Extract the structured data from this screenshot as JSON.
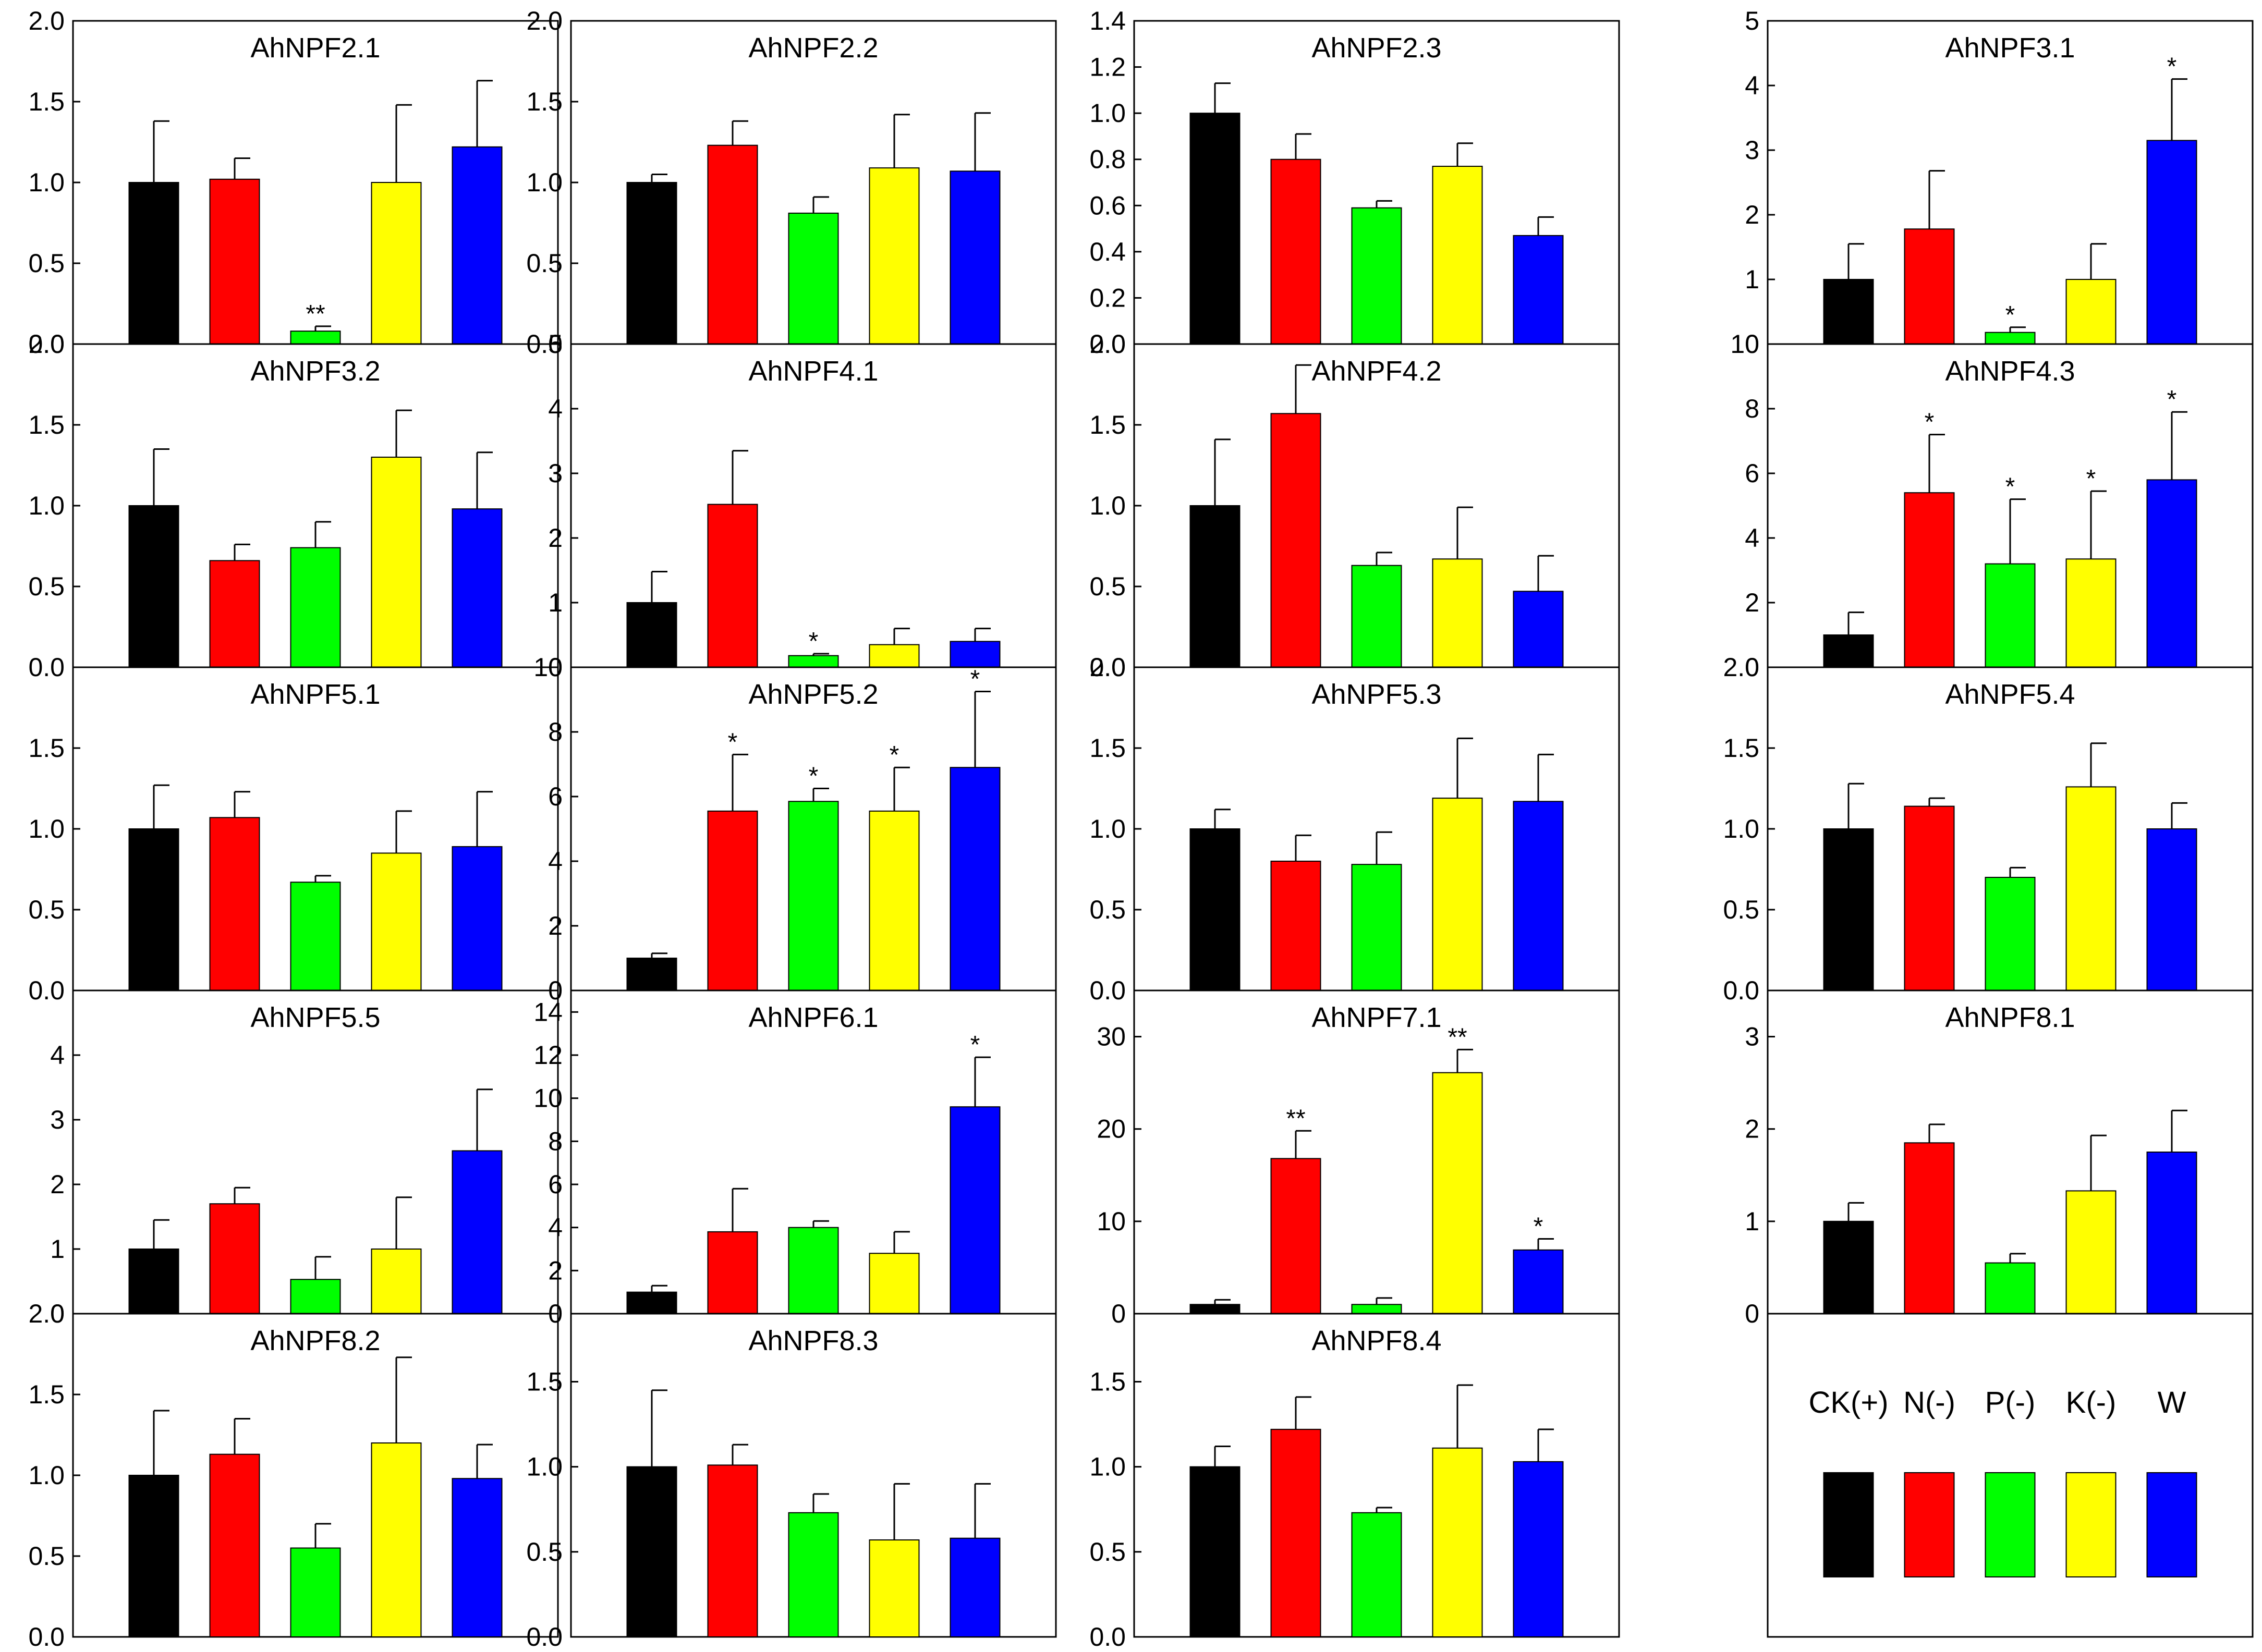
{
  "figure": {
    "legend": {
      "items": [
        {
          "label": "CK(+)",
          "color": "#000000"
        },
        {
          "label": "N(-)",
          "color": "#ff0000"
        },
        {
          "label": "P(-)",
          "color": "#00ff00"
        },
        {
          "label": "K(-)",
          "color": "#ffff00"
        },
        {
          "label": "W",
          "color": "#0000ff"
        }
      ]
    }
  },
  "chart_data": [
    {
      "type": "bar",
      "title": "AhNPF2.1",
      "categories": [
        "CK(+)",
        "N(-)",
        "P(-)",
        "K(-)",
        "W"
      ],
      "values": [
        1.0,
        1.02,
        0.08,
        1.0,
        1.22
      ],
      "errors": [
        0.38,
        0.13,
        0.03,
        0.48,
        0.41
      ],
      "significance": [
        "",
        "",
        "**",
        "",
        ""
      ],
      "ylim": [
        0,
        2.0
      ],
      "yticks": [
        "0.0",
        "0.5",
        "1.0",
        "1.5",
        "2.0"
      ]
    },
    {
      "type": "bar",
      "title": "AhNPF2.2",
      "categories": [
        "CK(+)",
        "N(-)",
        "P(-)",
        "K(-)",
        "W"
      ],
      "values": [
        1.0,
        1.23,
        0.81,
        1.09,
        1.07
      ],
      "errors": [
        0.05,
        0.15,
        0.1,
        0.33,
        0.36
      ],
      "significance": [
        "",
        "",
        "",
        "",
        ""
      ],
      "ylim": [
        0,
        2.0
      ],
      "yticks": [
        "0.0",
        "0.5",
        "1.0",
        "1.5",
        "2.0"
      ]
    },
    {
      "type": "bar",
      "title": "AhNPF2.3",
      "categories": [
        "CK(+)",
        "N(-)",
        "P(-)",
        "K(-)",
        "W"
      ],
      "values": [
        1.0,
        0.8,
        0.59,
        0.77,
        0.47
      ],
      "errors": [
        0.13,
        0.11,
        0.03,
        0.1,
        0.08
      ],
      "significance": [
        "",
        "",
        "",
        "",
        ""
      ],
      "ylim": [
        0,
        1.4
      ],
      "yticks": [
        "0.0",
        "0.2",
        "0.4",
        "0.6",
        "0.8",
        "1.0",
        "1.2",
        "1.4"
      ]
    },
    {
      "type": "bar",
      "title": "AhNPF3.1",
      "categories": [
        "CK(+)",
        "N(-)",
        "P(-)",
        "K(-)",
        "W"
      ],
      "values": [
        1.0,
        1.78,
        0.18,
        1.0,
        3.15
      ],
      "errors": [
        0.55,
        0.9,
        0.08,
        0.55,
        0.95
      ],
      "significance": [
        "",
        "",
        "*",
        "",
        "*"
      ],
      "ylim": [
        0,
        5
      ],
      "yticks": [
        "0",
        "1",
        "2",
        "3",
        "4",
        "5"
      ]
    },
    {
      "type": "bar",
      "title": "AhNPF3.2",
      "categories": [
        "CK(+)",
        "N(-)",
        "P(-)",
        "K(-)",
        "W"
      ],
      "values": [
        1.0,
        0.66,
        0.74,
        1.3,
        0.98
      ],
      "errors": [
        0.35,
        0.1,
        0.16,
        0.29,
        0.35
      ],
      "significance": [
        "",
        "",
        "",
        "",
        ""
      ],
      "ylim": [
        0,
        2.0
      ],
      "yticks": [
        "0.0",
        "0.5",
        "1.0",
        "1.5",
        "2.0"
      ]
    },
    {
      "type": "bar",
      "title": "AhNPF4.1",
      "categories": [
        "CK(+)",
        "N(-)",
        "P(-)",
        "K(-)",
        "W"
      ],
      "values": [
        1.0,
        2.52,
        0.18,
        0.35,
        0.4
      ],
      "errors": [
        0.48,
        0.83,
        0.03,
        0.25,
        0.2
      ],
      "significance": [
        "",
        "",
        "*",
        "",
        ""
      ],
      "ylim": [
        0,
        5
      ],
      "yticks": [
        "0",
        "1",
        "2",
        "3",
        "4",
        "5"
      ]
    },
    {
      "type": "bar",
      "title": "AhNPF4.2",
      "categories": [
        "CK(+)",
        "N(-)",
        "P(-)",
        "K(-)",
        "W"
      ],
      "values": [
        1.0,
        1.57,
        0.63,
        0.67,
        0.47
      ],
      "errors": [
        0.41,
        0.3,
        0.08,
        0.32,
        0.22
      ],
      "significance": [
        "",
        "",
        "",
        "",
        ""
      ],
      "ylim": [
        0,
        2.0
      ],
      "yticks": [
        "0.0",
        "0.5",
        "1.0",
        "1.5",
        "2.0"
      ]
    },
    {
      "type": "bar",
      "title": "AhNPF4.3",
      "categories": [
        "CK(+)",
        "N(-)",
        "P(-)",
        "K(-)",
        "W"
      ],
      "values": [
        1.0,
        5.4,
        3.2,
        3.35,
        5.8
      ],
      "errors": [
        0.7,
        1.8,
        2.0,
        2.1,
        2.1
      ],
      "significance": [
        "",
        "*",
        "*",
        "*",
        "*"
      ],
      "ylim": [
        0,
        10
      ],
      "yticks": [
        "0",
        "2",
        "4",
        "6",
        "8",
        "10"
      ]
    },
    {
      "type": "bar",
      "title": "AhNPF5.1",
      "categories": [
        "CK(+)",
        "N(-)",
        "P(-)",
        "K(-)",
        "W"
      ],
      "values": [
        1.0,
        1.07,
        0.67,
        0.85,
        0.89
      ],
      "errors": [
        0.27,
        0.16,
        0.04,
        0.26,
        0.34
      ],
      "significance": [
        "",
        "",
        "",
        "",
        ""
      ],
      "ylim": [
        0,
        2.0
      ],
      "yticks": [
        "0.0",
        "0.5",
        "1.0",
        "1.5"
      ]
    },
    {
      "type": "bar",
      "title": "AhNPF5.2",
      "categories": [
        "CK(+)",
        "N(-)",
        "P(-)",
        "K(-)",
        "W"
      ],
      "values": [
        1.0,
        5.55,
        5.85,
        5.55,
        6.9
      ],
      "errors": [
        0.15,
        1.75,
        0.4,
        1.35,
        2.35
      ],
      "significance": [
        "",
        "*",
        "*",
        "*",
        "*"
      ],
      "ylim": [
        0,
        10
      ],
      "yticks": [
        "0",
        "2",
        "4",
        "6",
        "8",
        "10"
      ]
    },
    {
      "type": "bar",
      "title": "AhNPF5.3",
      "categories": [
        "CK(+)",
        "N(-)",
        "P(-)",
        "K(-)",
        "W"
      ],
      "values": [
        1.0,
        0.8,
        0.78,
        1.19,
        1.17
      ],
      "errors": [
        0.12,
        0.16,
        0.2,
        0.37,
        0.29
      ],
      "significance": [
        "",
        "",
        "",
        "",
        ""
      ],
      "ylim": [
        0,
        2.0
      ],
      "yticks": [
        "0.0",
        "0.5",
        "1.0",
        "1.5",
        "2.0"
      ]
    },
    {
      "type": "bar",
      "title": "AhNPF5.4",
      "categories": [
        "CK(+)",
        "N(-)",
        "P(-)",
        "K(-)",
        "W"
      ],
      "values": [
        1.0,
        1.14,
        0.7,
        1.26,
        1.0
      ],
      "errors": [
        0.28,
        0.05,
        0.06,
        0.27,
        0.16
      ],
      "significance": [
        "",
        "",
        "",
        "",
        ""
      ],
      "ylim": [
        0,
        2.0
      ],
      "yticks": [
        "0.0",
        "0.5",
        "1.0",
        "1.5",
        "2.0"
      ]
    },
    {
      "type": "bar",
      "title": "AhNPF5.5",
      "categories": [
        "CK(+)",
        "N(-)",
        "P(-)",
        "K(-)",
        "W"
      ],
      "values": [
        1.0,
        1.7,
        0.53,
        1.0,
        2.52
      ],
      "errors": [
        0.45,
        0.25,
        0.35,
        0.8,
        0.95
      ],
      "significance": [
        "",
        "",
        "",
        "",
        ""
      ],
      "ylim": [
        0,
        5
      ],
      "yticks": [
        "0",
        "1",
        "2",
        "3",
        "4"
      ]
    },
    {
      "type": "bar",
      "title": "AhNPF6.1",
      "categories": [
        "CK(+)",
        "N(-)",
        "P(-)",
        "K(-)",
        "W"
      ],
      "values": [
        1.0,
        3.8,
        4.0,
        2.8,
        9.6
      ],
      "errors": [
        0.3,
        2.0,
        0.3,
        1.0,
        2.3
      ],
      "significance": [
        "",
        "",
        "",
        "",
        "*"
      ],
      "ylim": [
        0,
        15
      ],
      "yticks": [
        "0",
        "2",
        "4",
        "6",
        "8",
        "10",
        "12",
        "14"
      ]
    },
    {
      "type": "bar",
      "title": "AhNPF7.1",
      "categories": [
        "CK(+)",
        "N(-)",
        "P(-)",
        "K(-)",
        "W"
      ],
      "values": [
        1.0,
        16.8,
        1.0,
        26.1,
        6.9
      ],
      "errors": [
        0.5,
        3.0,
        0.7,
        2.5,
        1.2
      ],
      "significance": [
        "",
        "**",
        "",
        "**",
        "*"
      ],
      "ylim": [
        0,
        35
      ],
      "yticks": [
        "0",
        "10",
        "20",
        "30"
      ]
    },
    {
      "type": "bar",
      "title": "AhNPF8.1",
      "categories": [
        "CK(+)",
        "N(-)",
        "P(-)",
        "K(-)",
        "W"
      ],
      "values": [
        1.0,
        1.85,
        0.55,
        1.33,
        1.75
      ],
      "errors": [
        0.2,
        0.2,
        0.1,
        0.6,
        0.45
      ],
      "significance": [
        "",
        "",
        "",
        "",
        ""
      ],
      "ylim": [
        0,
        3.5
      ],
      "yticks": [
        "0",
        "1",
        "2",
        "3"
      ]
    },
    {
      "type": "bar",
      "title": "AhNPF8.2",
      "categories": [
        "CK(+)",
        "N(-)",
        "P(-)",
        "K(-)",
        "W"
      ],
      "values": [
        1.0,
        1.13,
        0.55,
        1.2,
        0.98
      ],
      "errors": [
        0.4,
        0.22,
        0.15,
        0.53,
        0.21
      ],
      "significance": [
        "",
        "",
        "",
        "",
        ""
      ],
      "ylim": [
        0,
        2.0
      ],
      "yticks": [
        "0.0",
        "0.5",
        "1.0",
        "1.5",
        "2.0"
      ]
    },
    {
      "type": "bar",
      "title": "AhNPF8.3",
      "categories": [
        "CK(+)",
        "N(-)",
        "P(-)",
        "K(-)",
        "W"
      ],
      "values": [
        1.0,
        1.01,
        0.73,
        0.57,
        0.58
      ],
      "errors": [
        0.45,
        0.12,
        0.11,
        0.33,
        0.32
      ],
      "significance": [
        "",
        "",
        "",
        "",
        ""
      ],
      "ylim": [
        0,
        1.9
      ],
      "yticks": [
        "0.0",
        "0.5",
        "1.0",
        "1.5"
      ]
    },
    {
      "type": "bar",
      "title": "AhNPF8.4",
      "categories": [
        "CK(+)",
        "N(-)",
        "P(-)",
        "K(-)",
        "W"
      ],
      "values": [
        1.0,
        1.22,
        0.73,
        1.11,
        1.03
      ],
      "errors": [
        0.12,
        0.19,
        0.03,
        0.37,
        0.19
      ],
      "significance": [
        "",
        "",
        "",
        "",
        ""
      ],
      "ylim": [
        0,
        1.9
      ],
      "yticks": [
        "0.0",
        "0.5",
        "1.0",
        "1.5"
      ]
    }
  ]
}
